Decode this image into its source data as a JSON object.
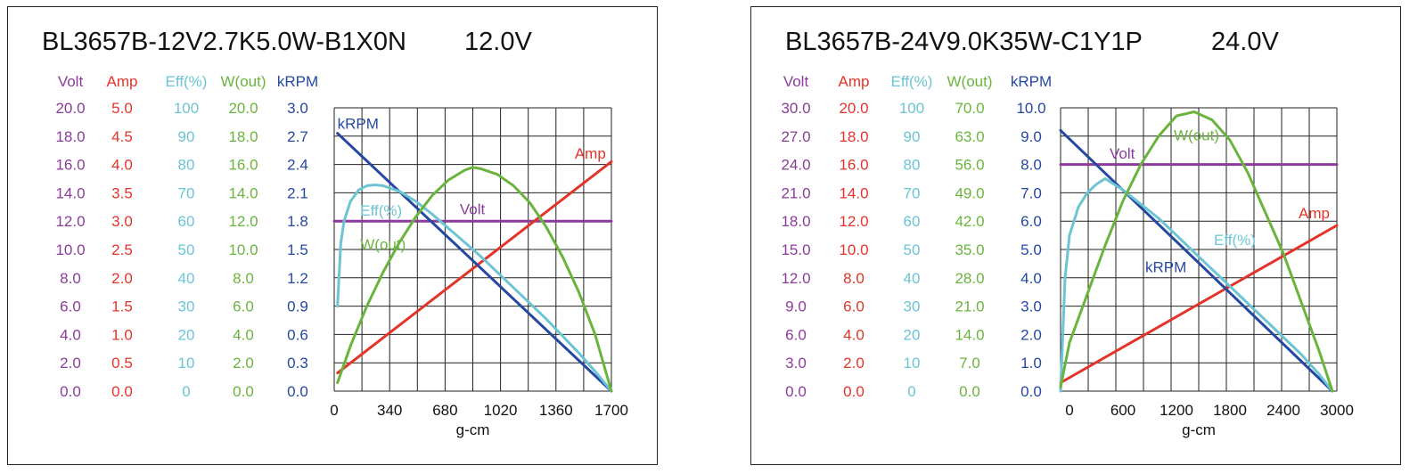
{
  "chart_data": [
    {
      "type": "line",
      "title": "BL3657B-12V2.7K5.0W-B1X0N",
      "subtitle": "12.0V",
      "xlabel": "g-cm",
      "xlim": [
        0,
        1700
      ],
      "x_ticks": [
        "0",
        "340",
        "680",
        "1020",
        "1360",
        "1700"
      ],
      "grid": true,
      "axes": [
        {
          "name": "Volt",
          "color": "#8b3c9a",
          "ticks": [
            "0.0",
            "2.0",
            "4.0",
            "6.0",
            "8.0",
            "10.0",
            "12.0",
            "14.0",
            "16.0",
            "18.0",
            "20.0"
          ],
          "ylim": [
            0,
            20
          ]
        },
        {
          "name": "Amp",
          "color": "#e3342a",
          "ticks": [
            "0.0",
            "0.5",
            "1.0",
            "1.5",
            "2.0",
            "2.5",
            "3.0",
            "3.5",
            "4.0",
            "4.5",
            "5.0"
          ],
          "ylim": [
            0,
            5
          ]
        },
        {
          "name": "Eff(%)",
          "color": "#6cc4d4",
          "ticks": [
            "0",
            "10",
            "20",
            "30",
            "40",
            "50",
            "60",
            "70",
            "80",
            "90",
            "100"
          ],
          "ylim": [
            0,
            100
          ]
        },
        {
          "name": "W(out)",
          "color": "#6ab43e",
          "ticks": [
            "0.0",
            "2.0",
            "4.0",
            "6.0",
            "8.0",
            "10.0",
            "12.0",
            "14.0",
            "16.0",
            "18.0",
            "20.0"
          ],
          "ylim": [
            0,
            20
          ]
        },
        {
          "name": "kRPM",
          "color": "#2548a0",
          "ticks": [
            "0.0",
            "0.3",
            "0.6",
            "0.9",
            "1.2",
            "1.5",
            "1.8",
            "2.1",
            "2.4",
            "2.7",
            "3.0"
          ],
          "ylim": [
            0,
            3
          ]
        }
      ],
      "series": [
        {
          "name": "Volt",
          "axis": 0,
          "color": "#8b3c9a",
          "x": [
            0,
            1700
          ],
          "y": [
            12.0,
            12.0
          ]
        },
        {
          "name": "Amp",
          "axis": 1,
          "color": "#e3342a",
          "x": [
            20,
            1700
          ],
          "y": [
            0.32,
            4.05
          ]
        },
        {
          "name": "kRPM",
          "axis": 4,
          "color": "#2548a0",
          "x": [
            20,
            1700
          ],
          "y": [
            2.73,
            0.0
          ]
        },
        {
          "name": "Eff(%)",
          "axis": 2,
          "color": "#6cc4d4",
          "x": [
            20,
            40,
            60,
            100,
            150,
            200,
            250,
            300,
            400,
            500,
            600,
            700,
            800,
            900,
            1000,
            1100,
            1200,
            1300,
            1400,
            1500,
            1600,
            1700
          ],
          "y": [
            30,
            52,
            60,
            67,
            71,
            72.5,
            72.8,
            72.5,
            70.5,
            67,
            62.5,
            57.5,
            52.5,
            47.5,
            42,
            36.5,
            31,
            25.5,
            19.5,
            13.5,
            7,
            0
          ]
        },
        {
          "name": "W(out)",
          "axis": 3,
          "color": "#6ab43e",
          "x": [
            20,
            100,
            200,
            300,
            400,
            500,
            600,
            700,
            800,
            850,
            900,
            1000,
            1100,
            1200,
            1300,
            1400,
            1500,
            1600,
            1700
          ],
          "y": [
            0.6,
            3.2,
            6.0,
            8.4,
            10.5,
            12.3,
            13.8,
            14.9,
            15.6,
            15.8,
            15.7,
            15.3,
            14.5,
            13.3,
            11.6,
            9.5,
            7.0,
            4.0,
            0.0
          ]
        }
      ],
      "annotations": [
        {
          "text": "kRPM",
          "color": "#2548a0",
          "x": 20,
          "axis": 4,
          "y": 2.78
        },
        {
          "text": "Amp",
          "color": "#e3342a",
          "x": 1475,
          "axis": 1,
          "y": 4.1
        },
        {
          "text": "Eff(%)",
          "color": "#6cc4d4",
          "x": 160,
          "axis": 2,
          "y": 62
        },
        {
          "text": "Volt",
          "color": "#8b3c9a",
          "x": 770,
          "axis": 0,
          "y": 12.5
        },
        {
          "text": "W(out)",
          "color": "#6ab43e",
          "x": 160,
          "axis": 3,
          "y": 10.0
        }
      ]
    },
    {
      "type": "line",
      "title": "BL3657B-24V9.0K35W-C1Y1P",
      "subtitle": "24.0V",
      "xlabel": "g-cm",
      "xlim": [
        -100,
        3000
      ],
      "x_ticks": [
        "0",
        "600",
        "1200",
        "1800",
        "2400",
        "3000"
      ],
      "x_tick_values": [
        0,
        600,
        1200,
        1800,
        2400,
        3000
      ],
      "grid": true,
      "axes": [
        {
          "name": "Volt",
          "color": "#8b3c9a",
          "ticks": [
            "0.0",
            "3.0",
            "6.0",
            "9.0",
            "12.0",
            "15.0",
            "18.0",
            "21.0",
            "24.0",
            "27.0",
            "30.0"
          ],
          "ylim": [
            0,
            30
          ]
        },
        {
          "name": "Amp",
          "color": "#e3342a",
          "ticks": [
            "0.0",
            "2.0",
            "4.0",
            "6.0",
            "8.0",
            "10.0",
            "12.0",
            "14.0",
            "16.0",
            "18.0",
            "20.0"
          ],
          "ylim": [
            0,
            20
          ]
        },
        {
          "name": "Eff(%)",
          "color": "#6cc4d4",
          "ticks": [
            "0",
            "10",
            "20",
            "30",
            "40",
            "50",
            "60",
            "70",
            "80",
            "90",
            "100"
          ],
          "ylim": [
            0,
            100
          ]
        },
        {
          "name": "W(out)",
          "color": "#6ab43e",
          "ticks": [
            "0.0",
            "7.0",
            "14.0",
            "21.0",
            "28.0",
            "35.0",
            "42.0",
            "49.0",
            "56.0",
            "63.0",
            "70.0"
          ],
          "ylim": [
            0,
            70
          ]
        },
        {
          "name": "kRPM",
          "color": "#2548a0",
          "ticks": [
            "0.0",
            "1.0",
            "2.0",
            "3.0",
            "4.0",
            "5.0",
            "6.0",
            "7.0",
            "8.0",
            "9.0",
            "10.0"
          ],
          "ylim": [
            0,
            10
          ]
        }
      ],
      "series": [
        {
          "name": "Volt",
          "axis": 0,
          "color": "#8b3c9a",
          "x": [
            -100,
            3000
          ],
          "y": [
            24.0,
            24.0
          ]
        },
        {
          "name": "Amp",
          "axis": 1,
          "color": "#e3342a",
          "x": [
            -100,
            3000
          ],
          "y": [
            0.6,
            11.7
          ]
        },
        {
          "name": "kRPM",
          "axis": 4,
          "color": "#2548a0",
          "x": [
            -100,
            2950
          ],
          "y": [
            9.2,
            0.0
          ]
        },
        {
          "name": "Eff(%)",
          "axis": 2,
          "color": "#6cc4d4",
          "x": [
            -100,
            -50,
            0,
            100,
            200,
            300,
            400,
            600,
            800,
            1000,
            1200,
            1400,
            1600,
            1800,
            2000,
            2200,
            2400,
            2600,
            2800,
            2950
          ],
          "y": [
            0,
            40,
            55,
            65,
            70,
            73,
            75,
            71,
            66,
            61,
            55,
            49,
            43,
            37,
            31,
            25,
            19,
            13,
            6,
            0
          ]
        },
        {
          "name": "W(out)",
          "axis": 3,
          "color": "#6ab43e",
          "x": [
            -100,
            0,
            200,
            400,
            600,
            800,
            1000,
            1200,
            1400,
            1600,
            1800,
            2000,
            2200,
            2400,
            2600,
            2800,
            2950
          ],
          "y": [
            1,
            12,
            24,
            36,
            47,
            56,
            63,
            68,
            69,
            67,
            62,
            54,
            44,
            34,
            22,
            10,
            0
          ]
        }
      ],
      "annotations": [
        {
          "text": "Volt",
          "color": "#8b3c9a",
          "x": 450,
          "axis": 0,
          "y": 24.6
        },
        {
          "text": "W(out)",
          "color": "#6ab43e",
          "x": 1170,
          "axis": 3,
          "y": 62.0
        },
        {
          "text": "Amp",
          "color": "#e3342a",
          "x": 2570,
          "axis": 1,
          "y": 12.2
        },
        {
          "text": "Eff(%)",
          "color": "#6cc4d4",
          "x": 1620,
          "axis": 2,
          "y": 51.5
        },
        {
          "text": "kRPM",
          "color": "#2548a0",
          "x": 850,
          "axis": 4,
          "y": 4.2
        }
      ]
    }
  ]
}
